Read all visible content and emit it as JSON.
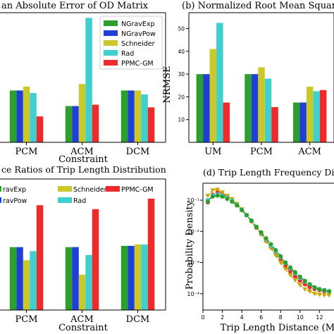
{
  "chart_data": [
    {
      "type": "bar",
      "title": "(a) Mean Absolute Error of OD Matrix",
      "title_visible": "an Absolute Error of OD Matrix",
      "xlabel": "Constraint",
      "ylabel": "",
      "categories": [
        "PCM",
        "ACM",
        "DCM"
      ],
      "ylim": [
        0,
        1.0
      ],
      "legend_placement": "top-right",
      "series": [
        {
          "name": "NGravExp",
          "color": "#2ca02c",
          "values": [
            0.4,
            0.28,
            0.4
          ]
        },
        {
          "name": "NGravPow",
          "color": "#1f3fd6",
          "values": [
            0.4,
            0.28,
            0.4
          ]
        },
        {
          "name": "Schneider",
          "color": "#c9c92c",
          "values": [
            0.43,
            0.45,
            0.4
          ]
        },
        {
          "name": "Rad",
          "color": "#3fcfcf",
          "values": [
            0.38,
            0.96,
            0.37
          ]
        },
        {
          "name": "PPMC-GM",
          "color": "#ee2a2a",
          "values": [
            0.2,
            0.29,
            0.27
          ]
        }
      ]
    },
    {
      "type": "bar",
      "title": "(b) Normalized Root Mean Square Error",
      "title_visible": "(b) Normalized Root Mean Square Erro",
      "xlabel": "",
      "ylabel": "NRMSE",
      "categories": [
        "UM",
        "PCM",
        "ACM"
      ],
      "ylim": [
        0,
        57
      ],
      "yticks": [
        10,
        20,
        30,
        40,
        50
      ],
      "series": [
        {
          "name": "NGravExp",
          "color": "#2ca02c",
          "values": [
            30,
            30,
            17.5
          ]
        },
        {
          "name": "NGravPow",
          "color": "#1f3fd6",
          "values": [
            30,
            30,
            17.5
          ]
        },
        {
          "name": "Schneider",
          "color": "#c9c92c",
          "values": [
            41,
            33,
            24.5
          ]
        },
        {
          "name": "Rad",
          "color": "#3fcfcf",
          "values": [
            52.5,
            28,
            22.5
          ]
        },
        {
          "name": "PPMC-GM",
          "color": "#ee2a2a",
          "values": [
            17.5,
            15.5,
            23
          ]
        }
      ]
    },
    {
      "type": "bar",
      "title": "(c) Coincidence Ratios of Trip Length Distribution",
      "title_visible": "ce Ratios of Trip Length Distribution",
      "xlabel": "Constraint",
      "ylabel": "",
      "categories": [
        "PCM",
        "ACM",
        "DCM"
      ],
      "ylim": [
        0,
        1.0
      ],
      "legend_placement": "top",
      "legend": [
        "NGravExp",
        "NGravPow",
        "Schneider",
        "Rad",
        "PPMC-GM"
      ],
      "legend_visible": [
        "ravExp",
        "ravPow",
        "Schneider",
        "Rad",
        "PPMC-GM"
      ],
      "series": [
        {
          "name": "NGravExp",
          "color": "#2ca02c",
          "values": [
            0.48,
            0.48,
            0.49
          ]
        },
        {
          "name": "NGravPow",
          "color": "#1f3fd6",
          "values": [
            0.48,
            0.48,
            0.49
          ]
        },
        {
          "name": "Schneider",
          "color": "#c9c92c",
          "values": [
            0.38,
            0.27,
            0.5
          ]
        },
        {
          "name": "Rad",
          "color": "#3fcfcf",
          "values": [
            0.45,
            0.42,
            0.5
          ]
        },
        {
          "name": "PPMC-GM",
          "color": "#ee2a2a",
          "values": [
            0.8,
            0.77,
            0.85
          ]
        }
      ]
    },
    {
      "type": "line",
      "title": "(d) Trip Length Frequency Distribution",
      "title_visible": "(d) Trip Length Frequency Distr",
      "xlabel": "Trip Length Distance (Miles)",
      "xlabel_visible": "Trip Length Distance (Mil",
      "ylabel": "Probability Density",
      "xlim": [
        0,
        13.5
      ],
      "xticks": [
        0,
        2,
        4,
        6,
        8,
        10,
        12
      ],
      "yscale": "log",
      "ylim": [
        3e-05,
        0.35
      ],
      "yticks": [
        "10^{-1}",
        "10^{-2}",
        "10^{-3}",
        "10^{-4}"
      ],
      "ytick_values": [
        0.1,
        0.01,
        0.001,
        0.0001
      ],
      "x": [
        0.5,
        1.0,
        1.5,
        2.0,
        2.5,
        3.0,
        3.5,
        4.0,
        4.5,
        5.0,
        5.5,
        6.0,
        6.5,
        7.0,
        7.5,
        8.0,
        8.5,
        9.0,
        9.5,
        10.0,
        10.5,
        11.0,
        11.5,
        12.0,
        12.5,
        13.0
      ],
      "series": [
        {
          "color": "#ee2a2a",
          "marker": "circle",
          "values": [
            0.085,
            0.15,
            0.18,
            0.16,
            0.13,
            0.1,
            0.072,
            0.05,
            0.033,
            0.021,
            0.013,
            0.0082,
            0.005,
            0.0031,
            0.0019,
            0.0012,
            0.00078,
            0.00052,
            0.00036,
            0.00026,
            0.0002,
            0.00016,
            0.00014,
            0.00013,
            0.00012,
            0.00012
          ]
        },
        {
          "color": "#c9a800",
          "marker": "triangle",
          "values": [
            0.14,
            0.21,
            0.22,
            0.18,
            0.14,
            0.11,
            0.078,
            0.052,
            0.034,
            0.021,
            0.013,
            0.008,
            0.0048,
            0.0029,
            0.0017,
            0.001,
            0.00062,
            0.0004,
            0.00027,
            0.00019,
            0.00014,
            0.00012,
            0.0001,
            9.5e-05,
            9e-05,
            9e-05
          ]
        },
        {
          "color": "#3fcfcf",
          "marker": "square",
          "values": [
            0.1,
            0.14,
            0.15,
            0.14,
            0.12,
            0.095,
            0.07,
            0.049,
            0.033,
            0.022,
            0.014,
            0.009,
            0.0057,
            0.0036,
            0.0023,
            0.0015,
            0.00098,
            0.00066,
            0.00046,
            0.00033,
            0.00025,
            0.0002,
            0.00016,
            0.00014,
            0.00013,
            0.00012
          ]
        },
        {
          "color": "#2ca02c",
          "marker": "circle",
          "values": [
            0.09,
            0.13,
            0.14,
            0.13,
            0.11,
            0.09,
            0.068,
            0.048,
            0.033,
            0.022,
            0.014,
            0.0093,
            0.006,
            0.0039,
            0.0025,
            0.0016,
            0.001,
            0.0007,
            0.00049,
            0.00035,
            0.00026,
            0.0002,
            0.00016,
            0.00014,
            0.00013,
            0.00012
          ]
        }
      ]
    }
  ]
}
